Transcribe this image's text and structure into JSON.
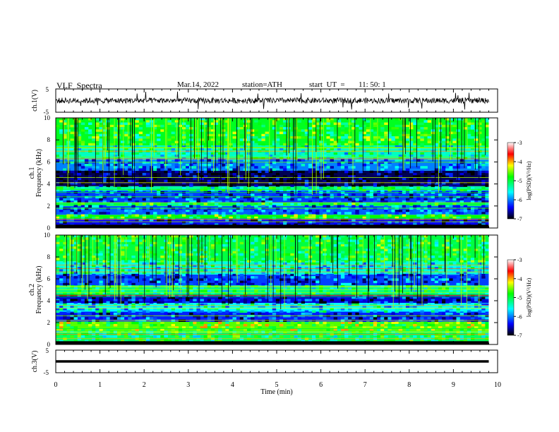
{
  "header": {
    "title": "VLF  Spectra",
    "date": "Mar.14, 2022",
    "station": "station=ATH",
    "start_label": "start  UT  =",
    "start_time": "11: 50: 1"
  },
  "colors": {
    "colormap": [
      "#000000",
      "#0000ff",
      "#00ffff",
      "#00ff00",
      "#ffff00",
      "#ff0000",
      "#ffffff"
    ],
    "trace": "#000000",
    "frame": "#000000"
  },
  "chart_data": [
    {
      "type": "line",
      "name": "ch1-waveform",
      "ylabel": "ch.1(V)",
      "ylim": [
        -5,
        5
      ],
      "ticks": [
        "5",
        "-5"
      ],
      "xlim": [
        0,
        10
      ],
      "x_end_min": 9.8,
      "noise_amplitude_v": 1.2
    },
    {
      "type": "heatmap",
      "name": "ch1-spectrogram",
      "ylabel_channel": "ch.1",
      "ylabel": "Frequency  (kHz)",
      "ylim": [
        0,
        10
      ],
      "yticks": [
        "0",
        "2",
        "4",
        "6",
        "8",
        "10"
      ],
      "xlim": [
        0,
        9.8
      ],
      "colorbar": {
        "label": "log(PSD)(V²/Hz)",
        "range": [
          -7,
          -3
        ],
        "ticks": [
          "-3",
          "-4",
          "-5",
          "-6",
          "-7"
        ]
      },
      "bands_khz": [
        {
          "from": 0,
          "to": 0.9,
          "level": -6.4
        },
        {
          "from": 0.9,
          "to": 1.2,
          "level": -4.8
        },
        {
          "from": 1.2,
          "to": 2.0,
          "level": -6.1
        },
        {
          "from": 2.0,
          "to": 2.3,
          "level": -5.0
        },
        {
          "from": 2.3,
          "to": 3.4,
          "level": -6.2
        },
        {
          "from": 3.4,
          "to": 3.8,
          "level": -5.3
        },
        {
          "from": 3.8,
          "to": 5.2,
          "level": -6.8
        },
        {
          "from": 5.2,
          "to": 6.2,
          "level": -6.0
        },
        {
          "from": 6.2,
          "to": 7.5,
          "level": -5.4
        },
        {
          "from": 7.5,
          "to": 10,
          "level": -4.9
        }
      ]
    },
    {
      "type": "heatmap",
      "name": "ch2-spectrogram",
      "ylabel_channel": "ch.2",
      "ylabel": "Frequency  (kHz)",
      "ylim": [
        0,
        10
      ],
      "yticks": [
        "0",
        "2",
        "4",
        "6",
        "8",
        "10"
      ],
      "xlim": [
        0,
        9.8
      ],
      "colorbar": {
        "label": "log(PSD)(V²/Hz)",
        "range": [
          -7,
          -3
        ],
        "ticks": [
          "-3",
          "-4",
          "-5",
          "-6",
          "-7"
        ]
      },
      "bands_khz": [
        {
          "from": 0,
          "to": 1.2,
          "level": -5.1
        },
        {
          "from": 1.2,
          "to": 2.1,
          "level": -4.6
        },
        {
          "from": 2.1,
          "to": 3.0,
          "level": -6.3
        },
        {
          "from": 3.0,
          "to": 3.8,
          "level": -5.6
        },
        {
          "from": 3.8,
          "to": 4.6,
          "level": -6.5
        },
        {
          "from": 4.6,
          "to": 5.4,
          "level": -5.2
        },
        {
          "from": 5.4,
          "to": 6.4,
          "level": -6.2
        },
        {
          "from": 6.4,
          "to": 7.6,
          "level": -5.5
        },
        {
          "from": 7.6,
          "to": 10,
          "level": -5.0
        }
      ]
    },
    {
      "type": "line",
      "name": "ch3-waveform",
      "ylabel": "ch.3(V)",
      "ylim": [
        -5,
        5
      ],
      "ticks": [
        "5",
        "-5"
      ],
      "xlabel": "Time  (min)",
      "xlim": [
        0,
        10
      ],
      "xticks": [
        "0",
        "1",
        "2",
        "3",
        "4",
        "5",
        "6",
        "7",
        "8",
        "9",
        "10"
      ],
      "x_end_min": 9.8,
      "constant_v": 0
    }
  ]
}
